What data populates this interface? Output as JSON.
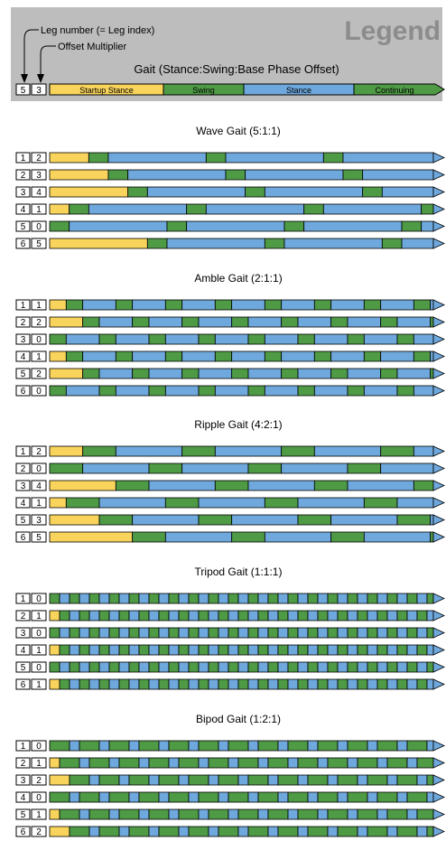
{
  "legend": {
    "title": "Legend",
    "annotation_leg_number": "Leg number (= Leg index)",
    "annotation_offset_multiplier": "Offset Multiplier",
    "gait_label": "Gait (Stance:Swing:Base Phase Offset)",
    "sample_leg": "5",
    "sample_offset": "3",
    "segments": [
      "Startup Stance",
      "Swing",
      "Stance",
      "Continuing"
    ]
  },
  "colors": {
    "startup": "#F9D45C",
    "swing": "#4E9A45",
    "stance": "#6FA8DC",
    "legend_bg": "#BDBDBD",
    "outline": "#000000"
  },
  "gaits": [
    {
      "title": "Wave Gait (5:1:1)",
      "stance": 5,
      "swing": 1,
      "legs": [
        {
          "leg": "1",
          "offset": "2"
        },
        {
          "leg": "2",
          "offset": "3"
        },
        {
          "leg": "3",
          "offset": "4"
        },
        {
          "leg": "4",
          "offset": "1"
        },
        {
          "leg": "5",
          "offset": "0"
        },
        {
          "leg": "6",
          "offset": "5"
        }
      ]
    },
    {
      "title": "Amble Gait (2:1:1)",
      "stance": 2,
      "swing": 1,
      "legs": [
        {
          "leg": "1",
          "offset": "1"
        },
        {
          "leg": "2",
          "offset": "2"
        },
        {
          "leg": "3",
          "offset": "0"
        },
        {
          "leg": "4",
          "offset": "1"
        },
        {
          "leg": "5",
          "offset": "2"
        },
        {
          "leg": "6",
          "offset": "0"
        }
      ]
    },
    {
      "title": "Ripple Gait (4:2:1)",
      "stance": 4,
      "swing": 2,
      "legs": [
        {
          "leg": "1",
          "offset": "2"
        },
        {
          "leg": "2",
          "offset": "0"
        },
        {
          "leg": "3",
          "offset": "4"
        },
        {
          "leg": "4",
          "offset": "1"
        },
        {
          "leg": "5",
          "offset": "3"
        },
        {
          "leg": "6",
          "offset": "5"
        }
      ]
    },
    {
      "title": "Tripod Gait (1:1:1)",
      "stance": 1,
      "swing": 1,
      "legs": [
        {
          "leg": "1",
          "offset": "0"
        },
        {
          "leg": "2",
          "offset": "1"
        },
        {
          "leg": "3",
          "offset": "0"
        },
        {
          "leg": "4",
          "offset": "1"
        },
        {
          "leg": "5",
          "offset": "0"
        },
        {
          "leg": "6",
          "offset": "1"
        }
      ]
    },
    {
      "title": "Bipod Gait (1:2:1)",
      "stance": 1,
      "swing": 2,
      "legs": [
        {
          "leg": "1",
          "offset": "0"
        },
        {
          "leg": "2",
          "offset": "1"
        },
        {
          "leg": "3",
          "offset": "2"
        },
        {
          "leg": "4",
          "offset": "0"
        },
        {
          "leg": "5",
          "offset": "1"
        },
        {
          "leg": "6",
          "offset": "2"
        }
      ]
    }
  ]
}
